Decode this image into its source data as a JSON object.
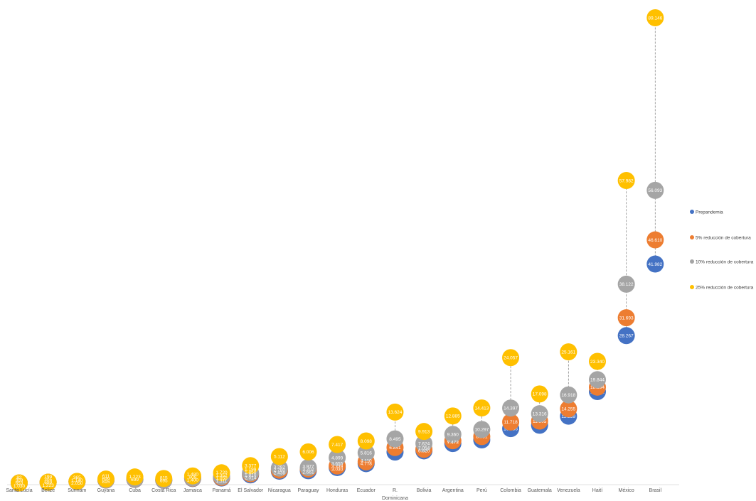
{
  "chart_data": {
    "type": "scatter",
    "categories": [
      "Santa Lucía",
      "Belize",
      "Surinam",
      "Guyana",
      "Cuba",
      "Costa Rica",
      "Jamaica",
      "Panamá",
      "El Salvador",
      "Nicaragua",
      "Paraguay",
      "Honduras",
      "Ecuador",
      "R. Dominicana",
      "Bolivia",
      "Argentina",
      "Perú",
      "Colombia",
      "Guatemala",
      "Venezuela",
      "Haití",
      "México",
      "Brasil"
    ],
    "ylim": [
      0,
      89146
    ],
    "grid": false,
    "legend_position": "right",
    "series": [
      {
        "name": "Prepandemia",
        "color": "#4472C4",
        "values": [
          52,
          180,
          300,
          600,
          750,
          550,
          900,
          1000,
          1600,
          2300,
          2400,
          3000,
          3750,
          5968,
          6200,
          7600,
          8300,
          10456,
          11108,
          12839,
          17552,
          28267,
          41982
        ],
        "labels": [
          "52",
          "",
          "",
          "",
          "",
          "",
          "",
          "",
          "",
          "",
          "",
          "",
          "",
          "5.968",
          "",
          "",
          "8.300",
          "10.456",
          "11.108",
          "12.839",
          "17.552",
          "28.267",
          "41.982"
        ]
      },
      {
        "name": "5% reducción de cobertura",
        "color": "#ED7D31",
        "values": [
          53,
          185,
          310,
          620,
          780,
          570,
          950,
          1100,
          1800,
          2500,
          2700,
          3300,
          4100,
          6841,
          6500,
          8143,
          8931,
          11718,
          11905,
          14255,
          18394,
          31693,
          46610
        ],
        "labels": [
          "",
          "",
          "",
          "",
          "",
          "",
          "",
          "",
          "",
          "",
          "",
          "",
          "",
          "6.841",
          "",
          "8.143",
          "8.931",
          "11.718",
          "11.905",
          "14.255",
          "18.394",
          "31.693",
          "46.610"
        ]
      },
      {
        "name": "10% reducción de cobertura",
        "color": "#A5A5A5",
        "values": [
          55,
          190,
          320,
          650,
          820,
          600,
          1000,
          1300,
          2000,
          2900,
          3000,
          4899,
          5816,
          8495,
          7624,
          9360,
          10297,
          14397,
          13316,
          16918,
          19844,
          38122,
          56093
        ],
        "labels": [
          "",
          "",
          "",
          "",
          "",
          "",
          "",
          "",
          "",
          "",
          "",
          "4.899",
          "5.816",
          "8.495",
          "7.624",
          "9.360",
          "10.297",
          "14.397",
          "13.316",
          "16.918",
          "19.844",
          "38.122",
          "56.093"
        ]
      },
      {
        "name": "25% reducción de cobertura",
        "color": "#FFC000",
        "values": [
          60,
          199,
          365,
          800,
          1200,
          900,
          1400,
          2000,
          3377,
          5112,
          6006,
          7417,
          8098,
          13624,
          9913,
          12885,
          14413,
          24057,
          17098,
          25161,
          23340,
          57982,
          89146
        ],
        "labels": [
          "",
          "",
          "",
          "",
          "",
          "",
          "",
          "",
          "3.377",
          "5.112",
          "6.006",
          "7.417",
          "8.098",
          "13.624",
          "9.913",
          "12.885",
          "14.413",
          "24.057",
          "17.098",
          "25.161",
          "23.340",
          "57.982",
          "89.146"
        ]
      }
    ],
    "extra_labels": [
      [
        "82",
        "309",
        "653",
        "1.030"
      ],
      [
        "199",
        "305",
        "699",
        "1.223"
      ],
      [
        "365",
        "1.140",
        "2.050"
      ],
      [
        "611",
        "699",
        "815"
      ],
      [
        "1.223",
        "699"
      ],
      [
        "815",
        "695"
      ],
      [
        "1.480",
        "909",
        "1.400"
      ],
      [
        "1.720",
        "1.352",
        "1.050",
        "1.311"
      ],
      [
        "1.199",
        "1.450",
        "1.810",
        "2.014"
      ],
      [
        "3.292",
        "2.780",
        "2.438"
      ],
      [
        "3.977",
        "3.202",
        "2.661"
      ],
      [
        "3.655",
        "3.339",
        "3.030"
      ],
      [
        "4.110",
        "4.778"
      ],
      [],
      [
        "7.054",
        "6.820"
      ],
      [
        "7.473"
      ],
      [],
      [],
      [],
      [],
      [],
      [],
      []
    ]
  }
}
